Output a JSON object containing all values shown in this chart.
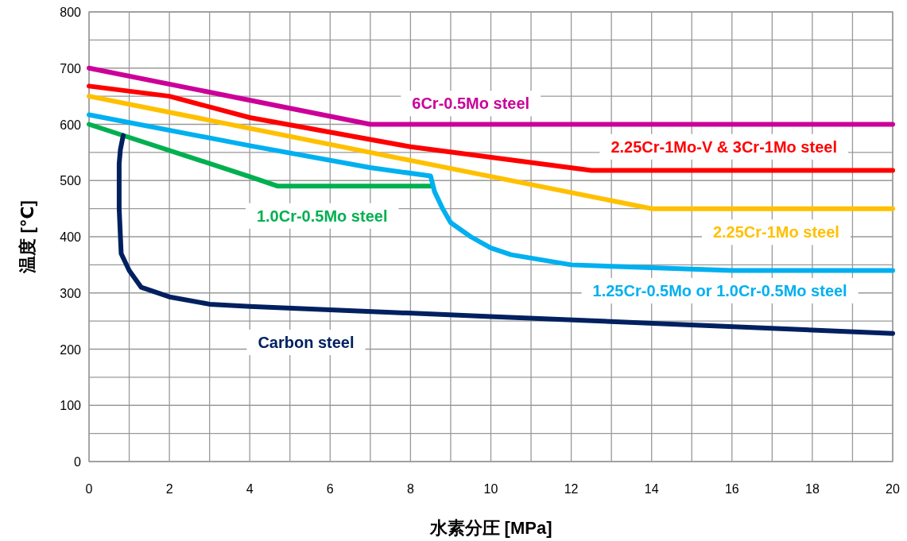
{
  "chart_data": {
    "type": "line",
    "xlabel": "水素分圧 [MPa]",
    "ylabel": "温度 [℃]",
    "xlim": [
      0,
      20
    ],
    "ylim": [
      0,
      800
    ],
    "xticks": [
      0,
      {
        "value": 1,
        "label": null
      },
      2,
      {
        "value": 3,
        "label": null
      },
      4,
      {
        "value": 5,
        "label": null
      },
      6,
      {
        "value": 7,
        "label": null
      },
      8,
      {
        "value": 9,
        "label": null
      },
      10,
      {
        "value": 11,
        "label": null
      },
      12,
      {
        "value": 13,
        "label": null
      },
      14,
      {
        "value": 15,
        "label": null
      },
      16,
      {
        "value": 17,
        "label": null
      },
      18,
      {
        "value": 19,
        "label": null
      },
      20
    ],
    "yticks": [
      0,
      {
        "value": 50,
        "label": null
      },
      100,
      {
        "value": 150,
        "label": null
      },
      200,
      {
        "value": 250,
        "label": null
      },
      300,
      {
        "value": 350,
        "label": null
      },
      400,
      {
        "value": 450,
        "label": null
      },
      500,
      {
        "value": 550,
        "label": null
      },
      600,
      {
        "value": 650,
        "label": null
      },
      700,
      {
        "value": 750,
        "label": null
      },
      800
    ],
    "grid": true,
    "line_style": "solid",
    "series": [
      {
        "name": "6Cr-0.5Mo steel",
        "color": "#cc0099",
        "x": [
          0,
          7,
          20
        ],
        "values": [
          700,
          600,
          600
        ]
      },
      {
        "name": "2.25Cr-1Mo-V & 3Cr-1Mo steel",
        "color": "#ff0000",
        "x": [
          0,
          2,
          4,
          8,
          12.5,
          20
        ],
        "values": [
          668,
          650,
          612,
          560,
          518,
          518
        ]
      },
      {
        "name": "1.0Cr-0.5Mo steel",
        "color": "#00b050",
        "x": [
          0,
          4,
          4.7,
          8.5
        ],
        "values": [
          600,
          507,
          490,
          490
        ]
      },
      {
        "name": "2.25Cr-1Mo steel",
        "color": "#ffc000",
        "x": [
          0,
          14,
          20
        ],
        "values": [
          650,
          450,
          450
        ]
      },
      {
        "name": "1.25Cr-0.5Mo or 1.0Cr-0.5Mo steel",
        "color": "#00b0f0",
        "x": [
          0,
          4,
          7,
          8.5,
          8.6,
          8.8,
          9,
          9.5,
          10,
          10.5,
          12,
          14,
          16,
          20
        ],
        "values": [
          617,
          562,
          523,
          508,
          480,
          450,
          425,
          400,
          380,
          368,
          350,
          345,
          340,
          340
        ]
      },
      {
        "name": "Carbon steel",
        "color": "#002060",
        "x": [
          0.85,
          0.78,
          0.75,
          0.75,
          0.8,
          1,
          1.3,
          2,
          3,
          4,
          10,
          20
        ],
        "values": [
          580,
          555,
          530,
          450,
          370,
          340,
          310,
          293,
          280,
          276,
          258,
          228
        ]
      }
    ]
  }
}
